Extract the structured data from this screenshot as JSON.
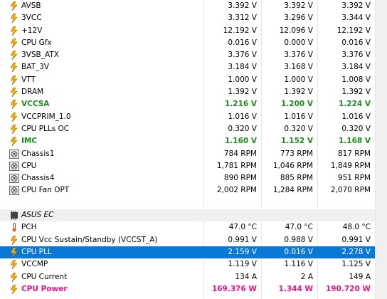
{
  "rows": [
    {
      "type": "volt",
      "name": "AVSB",
      "v1": "3.392 V",
      "v2": "3.392 V",
      "v3": "3.392 V"
    },
    {
      "type": "volt",
      "name": "3VCC",
      "v1": "3.312 V",
      "v2": "3.296 V",
      "v3": "3.344 V"
    },
    {
      "type": "volt",
      "name": "+12V",
      "v1": "12.192 V",
      "v2": "12.096 V",
      "v3": "12.192 V"
    },
    {
      "type": "volt",
      "name": "CPU Gfx",
      "v1": "0.016 V",
      "v2": "0.000 V",
      "v3": "0.016 V"
    },
    {
      "type": "volt",
      "name": "3VSB_ATX",
      "v1": "3.376 V",
      "v2": "3.376 V",
      "v3": "3.376 V"
    },
    {
      "type": "volt",
      "name": "BAT_3V",
      "v1": "3.184 V",
      "v2": "3.168 V",
      "v3": "3.184 V"
    },
    {
      "type": "volt",
      "name": "VTT",
      "v1": "1.000 V",
      "v2": "1.000 V",
      "v3": "1.008 V"
    },
    {
      "type": "volt",
      "name": "DRAM",
      "v1": "1.392 V",
      "v2": "1.392 V",
      "v3": "1.392 V"
    },
    {
      "type": "volt",
      "name": "VCCSA",
      "v1": "1.216 V",
      "v2": "1.200 V",
      "v3": "1.224 V",
      "style": "green"
    },
    {
      "type": "volt",
      "name": "VCCPRIM_1.0",
      "v1": "1.016 V",
      "v2": "1.016 V",
      "v3": "1.016 V"
    },
    {
      "type": "volt",
      "name": "CPU PLLs OC",
      "v1": "0.320 V",
      "v2": "0.320 V",
      "v3": "0.320 V"
    },
    {
      "type": "volt",
      "name": "IMC",
      "v1": "1.160 V",
      "v2": "1.152 V",
      "v3": "1.168 V",
      "style": "green"
    },
    {
      "type": "fan",
      "name": "Chassis1",
      "v1": "784 RPM",
      "v2": "773 RPM",
      "v3": "817 RPM"
    },
    {
      "type": "fan",
      "name": "CPU",
      "v1": "1,781 RPM",
      "v2": "1,046 RPM",
      "v3": "1,849 RPM"
    },
    {
      "type": "fan",
      "name": "Chassis4",
      "v1": "890 RPM",
      "v2": "885 RPM",
      "v3": "951 RPM"
    },
    {
      "type": "fan",
      "name": "CPU Fan OPT",
      "v1": "2,002 RPM",
      "v2": "1,284 RPM",
      "v3": "2,070 RPM"
    },
    {
      "type": "blank",
      "name": "",
      "v1": "",
      "v2": "",
      "v3": ""
    },
    {
      "type": "section",
      "name": "ASUS EC",
      "v1": "",
      "v2": "",
      "v3": ""
    },
    {
      "type": "temp",
      "name": "PCH",
      "v1": "47.0 °C",
      "v2": "47.0 °C",
      "v3": "48.0 °C"
    },
    {
      "type": "volt",
      "name": "CPU Vcc Sustain/Standby (VCCST_A)",
      "v1": "0.991 V",
      "v2": "0.988 V",
      "v3": "0.991 V"
    },
    {
      "type": "volt",
      "name": "CPU PLL",
      "v1": "2.159 V",
      "v2": "0.016 V",
      "v3": "2.278 V",
      "style": "selected"
    },
    {
      "type": "volt",
      "name": "VCCMP",
      "v1": "1.119 V",
      "v2": "1.116 V",
      "v3": "1.125 V"
    },
    {
      "type": "volt",
      "name": "CPU Current",
      "v1": "134 A",
      "v2": "2 A",
      "v3": "149 A"
    },
    {
      "type": "volt",
      "name": "CPU Power",
      "v1": "169.376 W",
      "v2": "1.344 W",
      "v3": "190.720 W",
      "style": "pink"
    }
  ]
}
